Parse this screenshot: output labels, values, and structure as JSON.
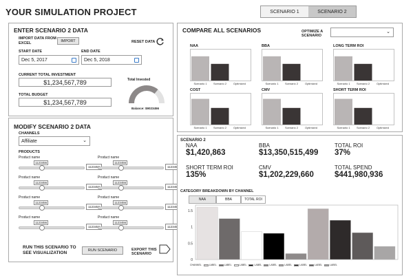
{
  "header": {
    "title": "YOUR SIMULATION PROJECT",
    "tabs": [
      "SCENARIO 1",
      "SCENARIO 2"
    ],
    "active_tab": 1
  },
  "enter": {
    "title": "ENTER SCENARIO 2 DATA",
    "import_label": "IMPORT DATA FROM EXCEL",
    "import_btn": "IMPORT",
    "reset_label": "RESET DATA",
    "start_label": "START DATE",
    "start_value": "Dec 5, 2017",
    "end_label": "END DATE",
    "end_value": "Dec 5, 2018",
    "investment_label": "CURRENT TOTAL INVESTMENT",
    "investment_value": "$1,234,567,789",
    "budget_label": "TOTAL BUDGET",
    "budget_value": "$1,234,567,789",
    "gauge_label": "Total Invested",
    "gauge_level": 0.72,
    "balance": "Balance: $9023456"
  },
  "modify": {
    "title": "MODIFY SCENARIO 2 DATA",
    "channels_label": "CHANNELS",
    "channel_value": "Affiliate",
    "products_label": "PRODUCTS",
    "products": [
      {
        "name": "Product name",
        "tip": "1123456",
        "value": "1123456",
        "pos": 0.35
      },
      {
        "name": "Product name",
        "tip": "1123456",
        "value": "1123456",
        "pos": 0.35
      },
      {
        "name": "Product name",
        "tip": "1123456",
        "value": "1123456",
        "pos": 0.35
      },
      {
        "name": "Product name",
        "tip": "1123456",
        "value": "1123456",
        "pos": 0.35
      },
      {
        "name": "Product name",
        "tip": "1123456",
        "value": "1123456",
        "pos": 0.35
      },
      {
        "name": "Product name",
        "tip": "1123456",
        "value": "1123456",
        "pos": 0.35
      },
      {
        "name": "Product name",
        "tip": "1123456",
        "value": "1123456",
        "pos": 0.35
      },
      {
        "name": "Product name",
        "tip": "1123456",
        "value": "1123456",
        "pos": 0.35
      }
    ],
    "run_label": "RUN THIS SCENARIO TO SEE VISUALIZATION",
    "run_btn": "RUN SCENARIO",
    "export_label": "EXPORT THIS SCENARIO"
  },
  "compare": {
    "title": "COMPARE ALL SCENARIOS",
    "optimize_label": "OPTIMIZE A SCENARIO",
    "colors": {
      "s1": "#b9b5b5",
      "s2": "#3a3535"
    },
    "categories": [
      "Scenario 1",
      "Scenario 2",
      "Optimized"
    ],
    "charts": [
      {
        "title": "NAA",
        "values": [
          0.8,
          0.55,
          0
        ]
      },
      {
        "title": "BBA",
        "values": [
          0.8,
          0.55,
          0
        ]
      },
      {
        "title": "LONG TERM ROI",
        "values": [
          0.8,
          0.55,
          0
        ]
      },
      {
        "title": "COST",
        "values": [
          0.85,
          0.55,
          0
        ]
      },
      {
        "title": "CMV",
        "values": [
          0.85,
          0.55,
          0
        ]
      },
      {
        "title": "SHORT TERM ROI",
        "values": [
          0.85,
          0.55,
          0
        ]
      }
    ]
  },
  "summary": {
    "title": "SCENARIO 2",
    "metrics": [
      {
        "label": "NAA",
        "value": "$1,420,863"
      },
      {
        "label": "BBA",
        "value": "$13,350,515,499"
      },
      {
        "label": "TOTAL ROI",
        "value": "37%"
      },
      {
        "label": "SHORT TERM ROI",
        "value": "135%"
      },
      {
        "label": "CMV",
        "value": "$1,202,229,660"
      },
      {
        "label": "TOTAL SPEND",
        "value": "$441,980,936"
      }
    ]
  },
  "breakdown": {
    "title": "CATEGORY BREAKDOWN BY CHANNEL",
    "tabs": [
      "NAA",
      "BBA",
      "TOTAL ROI"
    ],
    "active_tab": 0
  },
  "chart_data": {
    "type": "bar",
    "ylim": [
      0,
      1.6
    ],
    "yticks": [
      "0",
      "0.5",
      "1",
      "1.5"
    ],
    "values": [
      1.6,
      1.25,
      0.85,
      0.8,
      0.18,
      1.55,
      1.2,
      0.82,
      0.4
    ],
    "colors": [
      "#e6e2e2",
      "#6e6a6a",
      "#ffffff",
      "#000000",
      "#8e8a8a",
      "#b3abab",
      "#2e2a2a",
      "#5e5a5a",
      "#a8a6a6"
    ],
    "legend_title": "CHANNEL",
    "legend_entries": [
      "LABEL",
      "LABEL",
      "LABEL",
      "LABEL",
      "LABEL",
      "LABEL",
      "LABEL",
      "LABEL",
      "LABEL"
    ]
  }
}
